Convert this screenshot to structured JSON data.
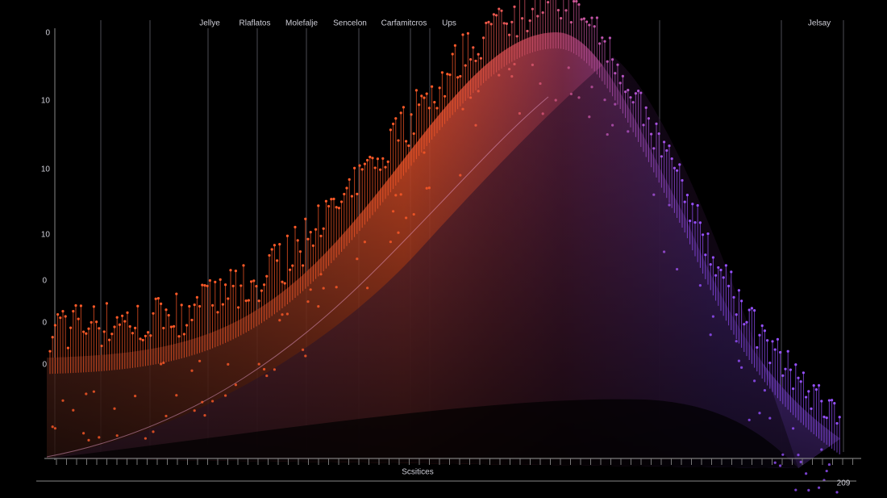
{
  "header": {
    "labels": [
      "Jellye",
      "Rlaflatos",
      "Molefalje",
      "Sencelon",
      "Carfamitcros",
      "Ups"
    ],
    "right_label": "Jelsay"
  },
  "y_labels": [
    "0",
    "10",
    "10",
    "10",
    "0",
    "0",
    "0"
  ],
  "x_label": "Scsitices",
  "corner_label": "209"
}
